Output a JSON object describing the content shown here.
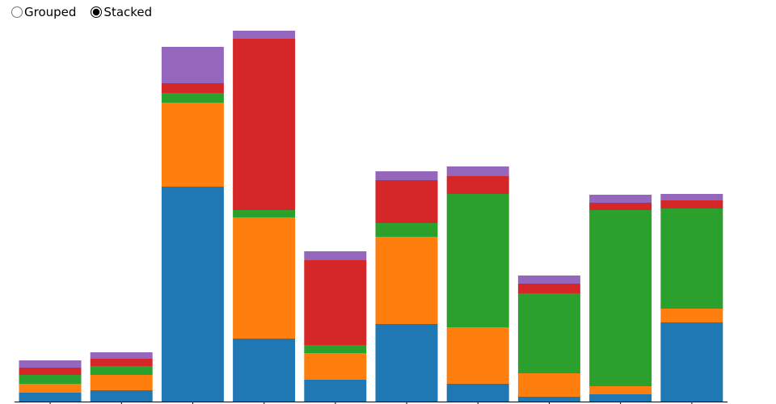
{
  "controls": {
    "options": [
      "Grouped",
      "Stacked"
    ],
    "selected_index": 1
  },
  "chart_data": {
    "type": "stacked_bar",
    "ylim": [
      0,
      460
    ],
    "series": [
      {
        "color": "#1f77b4",
        "values": [
          11,
          14,
          266,
          78,
          27,
          96,
          22,
          6,
          9,
          98
        ]
      },
      {
        "color": "#ff7f0e",
        "values": [
          11,
          19,
          104,
          150,
          33,
          108,
          70,
          29,
          10,
          17
        ]
      },
      {
        "color": "#2ca02c",
        "values": [
          11,
          11,
          12,
          9,
          10,
          17,
          165,
          99,
          218,
          124
        ]
      },
      {
        "color": "#d62728",
        "values": [
          9,
          9,
          12,
          212,
          105,
          53,
          22,
          12,
          9,
          10
        ]
      },
      {
        "color": "#9467bd",
        "values": [
          9,
          8,
          45,
          10,
          11,
          11,
          12,
          10,
          10,
          8
        ]
      }
    ]
  }
}
